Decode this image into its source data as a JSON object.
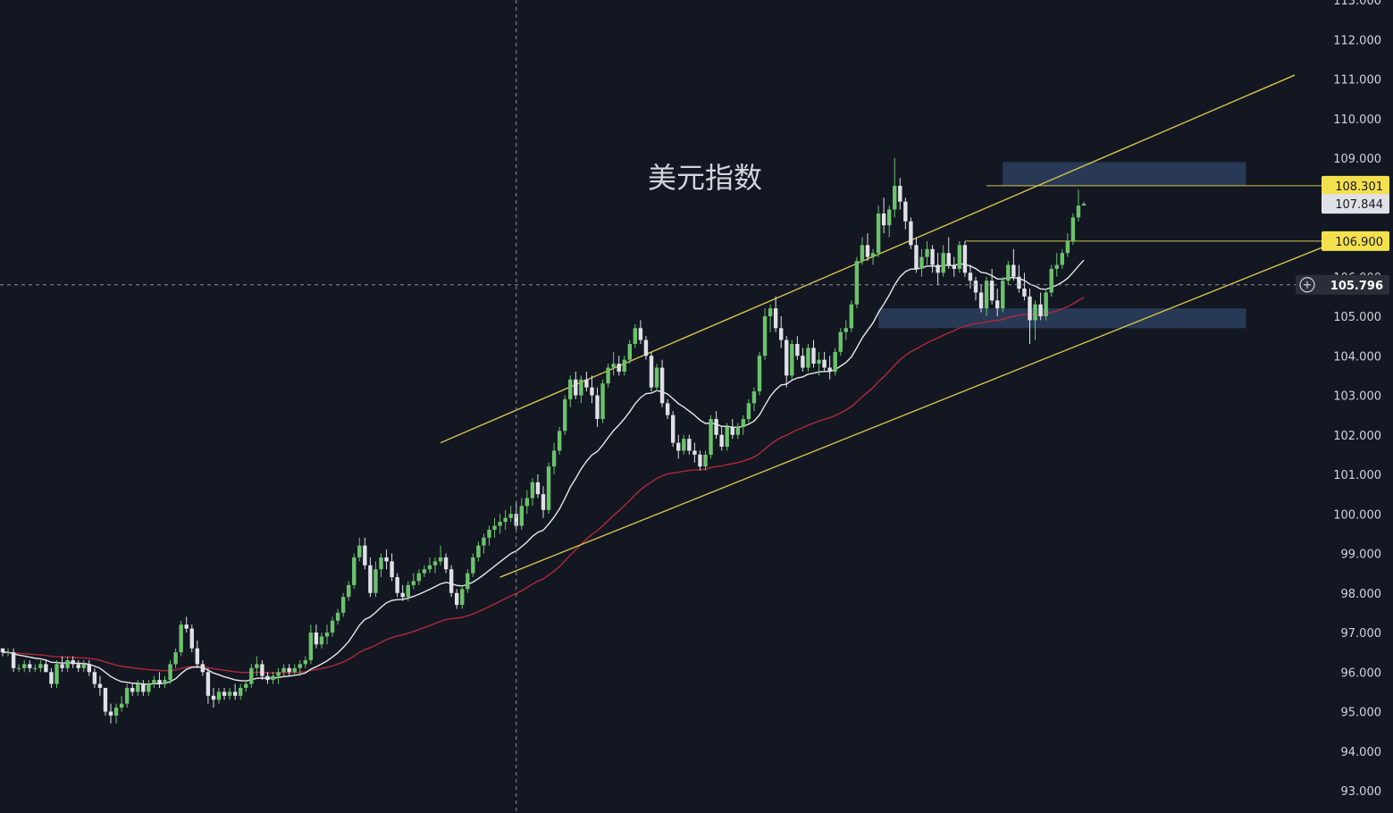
{
  "chart_data": {
    "type": "candlestick",
    "title": "美元指数",
    "y_range": [
      92.6,
      113.0
    ],
    "y_ticks": [
      "113.000",
      "112.000",
      "111.000",
      "110.000",
      "109.000",
      "108.000",
      "107.000",
      "106.000",
      "105.000",
      "104.000",
      "103.000",
      "102.000",
      "101.000",
      "100.000",
      "99.000",
      "98.000",
      "97.000",
      "96.000",
      "95.000",
      "94.000",
      "93.000"
    ],
    "price_labels": [
      {
        "value": 108.301,
        "text": "108.301",
        "style": "yellow"
      },
      {
        "value": 107.844,
        "text": "107.844",
        "style": "white"
      },
      {
        "value": 106.9,
        "text": "106.900",
        "style": "yellow"
      },
      {
        "value": 105.796,
        "text": "105.796",
        "style": "crosshair"
      }
    ],
    "horizontal_levels": [
      {
        "value": 108.301,
        "x_start_bar": 182,
        "color": "#d4c24a"
      },
      {
        "value": 106.9,
        "x_start_bar": 178,
        "color": "#d4c24a"
      }
    ],
    "zones": [
      {
        "top": 108.9,
        "bottom": 108.3,
        "start_bar": 185,
        "end_bar": 230
      },
      {
        "top": 105.2,
        "bottom": 104.7,
        "start_bar": 162,
        "end_bar": 230
      }
    ],
    "channel_lines": [
      {
        "from": [
          81,
          101.8
        ],
        "to": [
          239,
          111.1
        ]
      },
      {
        "from": [
          92,
          98.4
        ],
        "to": [
          247,
          106.9
        ]
      }
    ],
    "crosshair": {
      "bar": 95,
      "price": 105.796
    },
    "candles": [
      [
        96.6,
        96.6,
        96.4,
        96.5
      ],
      [
        96.5,
        96.6,
        96.4,
        96.5
      ],
      [
        96.5,
        96.6,
        96.0,
        96.1
      ],
      [
        96.1,
        96.2,
        96.0,
        96.1
      ],
      [
        96.1,
        96.3,
        96.0,
        96.2
      ],
      [
        96.2,
        96.3,
        96.0,
        96.1
      ],
      [
        96.1,
        96.2,
        96.0,
        96.1
      ],
      [
        96.1,
        96.3,
        96.0,
        96.2
      ],
      [
        96.2,
        96.3,
        96.0,
        96.0
      ],
      [
        96.0,
        96.1,
        95.6,
        95.7
      ],
      [
        95.7,
        96.3,
        95.6,
        96.2
      ],
      [
        96.2,
        96.4,
        96.0,
        96.1
      ],
      [
        96.1,
        96.4,
        96.0,
        96.3
      ],
      [
        96.3,
        96.4,
        96.1,
        96.2
      ],
      [
        96.2,
        96.3,
        96.0,
        96.1
      ],
      [
        96.1,
        96.3,
        96.0,
        96.2
      ],
      [
        96.2,
        96.3,
        95.9,
        96.0
      ],
      [
        96.0,
        96.1,
        95.6,
        95.7
      ],
      [
        95.7,
        95.9,
        95.4,
        95.6
      ],
      [
        95.6,
        95.6,
        94.9,
        95.0
      ],
      [
        95.0,
        95.2,
        94.7,
        94.9
      ],
      [
        94.9,
        95.2,
        94.7,
        95.1
      ],
      [
        95.1,
        95.4,
        95.0,
        95.2
      ],
      [
        95.2,
        95.7,
        95.1,
        95.6
      ],
      [
        95.6,
        95.7,
        95.4,
        95.5
      ],
      [
        95.5,
        95.8,
        95.4,
        95.7
      ],
      [
        95.7,
        95.8,
        95.4,
        95.5
      ],
      [
        95.5,
        95.8,
        95.4,
        95.7
      ],
      [
        95.7,
        95.9,
        95.6,
        95.8
      ],
      [
        95.8,
        96.0,
        95.6,
        95.7
      ],
      [
        95.7,
        95.9,
        95.6,
        95.8
      ],
      [
        95.8,
        96.3,
        95.7,
        96.2
      ],
      [
        96.2,
        96.6,
        96.1,
        96.5
      ],
      [
        96.5,
        97.3,
        96.4,
        97.2
      ],
      [
        97.2,
        97.4,
        97.0,
        97.1
      ],
      [
        97.1,
        97.2,
        96.5,
        96.6
      ],
      [
        96.6,
        96.8,
        96.1,
        96.2
      ],
      [
        96.2,
        96.3,
        95.9,
        96.0
      ],
      [
        96.0,
        96.1,
        95.2,
        95.4
      ],
      [
        95.4,
        95.6,
        95.1,
        95.3
      ],
      [
        95.3,
        95.6,
        95.2,
        95.5
      ],
      [
        95.5,
        95.6,
        95.3,
        95.4
      ],
      [
        95.4,
        95.6,
        95.3,
        95.5
      ],
      [
        95.5,
        95.7,
        95.3,
        95.4
      ],
      [
        95.4,
        95.7,
        95.3,
        95.6
      ],
      [
        95.6,
        95.8,
        95.5,
        95.7
      ],
      [
        95.7,
        96.2,
        95.6,
        96.1
      ],
      [
        96.1,
        96.4,
        95.9,
        96.2
      ],
      [
        96.2,
        96.3,
        95.8,
        95.9
      ],
      [
        95.9,
        96.0,
        95.7,
        95.8
      ],
      [
        95.8,
        96.0,
        95.7,
        95.9
      ],
      [
        95.9,
        96.1,
        95.7,
        96.0
      ],
      [
        96.0,
        96.2,
        95.9,
        96.1
      ],
      [
        96.1,
        96.2,
        95.9,
        96.0
      ],
      [
        96.0,
        96.2,
        95.9,
        96.1
      ],
      [
        96.1,
        96.3,
        95.9,
        96.2
      ],
      [
        96.2,
        96.4,
        96.1,
        96.3
      ],
      [
        96.3,
        97.2,
        96.2,
        97.0
      ],
      [
        97.0,
        97.2,
        96.6,
        96.7
      ],
      [
        96.7,
        97.0,
        96.6,
        96.9
      ],
      [
        96.9,
        97.2,
        96.7,
        97.0
      ],
      [
        97.0,
        97.4,
        96.9,
        97.3
      ],
      [
        97.3,
        97.6,
        97.2,
        97.5
      ],
      [
        97.5,
        98.0,
        97.4,
        97.9
      ],
      [
        97.9,
        98.3,
        97.8,
        98.2
      ],
      [
        98.2,
        99.0,
        98.1,
        98.9
      ],
      [
        98.9,
        99.4,
        98.8,
        99.2
      ],
      [
        99.2,
        99.4,
        98.6,
        98.7
      ],
      [
        98.7,
        98.9,
        97.9,
        98.0
      ],
      [
        98.0,
        98.8,
        97.9,
        98.6
      ],
      [
        98.6,
        99.0,
        98.4,
        98.9
      ],
      [
        98.9,
        99.1,
        98.6,
        98.8
      ],
      [
        98.8,
        99.0,
        98.3,
        98.4
      ],
      [
        98.4,
        98.5,
        97.9,
        98.0
      ],
      [
        98.0,
        98.2,
        97.8,
        97.9
      ],
      [
        97.9,
        98.3,
        97.8,
        98.2
      ],
      [
        98.2,
        98.5,
        98.1,
        98.3
      ],
      [
        98.3,
        98.6,
        98.2,
        98.5
      ],
      [
        98.5,
        98.7,
        98.4,
        98.6
      ],
      [
        98.6,
        98.9,
        98.5,
        98.7
      ],
      [
        98.7,
        98.9,
        98.5,
        98.8
      ],
      [
        98.8,
        99.2,
        98.7,
        98.9
      ],
      [
        98.9,
        99.0,
        98.5,
        98.6
      ],
      [
        98.6,
        98.7,
        97.9,
        98.0
      ],
      [
        98.0,
        98.1,
        97.6,
        97.7
      ],
      [
        97.7,
        98.2,
        97.6,
        98.1
      ],
      [
        98.1,
        98.6,
        98.0,
        98.5
      ],
      [
        98.5,
        99.0,
        98.4,
        98.9
      ],
      [
        98.9,
        99.3,
        98.8,
        99.2
      ],
      [
        99.2,
        99.5,
        99.0,
        99.4
      ],
      [
        99.4,
        99.7,
        99.2,
        99.6
      ],
      [
        99.6,
        99.9,
        99.4,
        99.7
      ],
      [
        99.7,
        100.0,
        99.5,
        99.8
      ],
      [
        99.8,
        100.1,
        99.6,
        99.9
      ],
      [
        99.9,
        100.2,
        99.8,
        100.0
      ],
      [
        100.0,
        100.3,
        99.6,
        99.7
      ],
      [
        99.7,
        100.4,
        99.6,
        100.2
      ],
      [
        100.2,
        100.6,
        100.0,
        100.4
      ],
      [
        100.4,
        100.9,
        100.2,
        100.8
      ],
      [
        100.8,
        101.0,
        100.4,
        100.5
      ],
      [
        100.5,
        100.7,
        99.9,
        100.1
      ],
      [
        100.1,
        101.3,
        100.0,
        101.2
      ],
      [
        101.2,
        101.8,
        101.0,
        101.6
      ],
      [
        101.6,
        102.2,
        101.5,
        102.1
      ],
      [
        102.1,
        103.0,
        102.0,
        102.9
      ],
      [
        102.9,
        103.5,
        102.7,
        103.4
      ],
      [
        103.4,
        103.6,
        102.9,
        103.0
      ],
      [
        103.0,
        103.5,
        102.8,
        103.4
      ],
      [
        103.4,
        103.6,
        103.1,
        103.2
      ],
      [
        103.2,
        103.5,
        102.8,
        103.0
      ],
      [
        103.0,
        103.2,
        102.2,
        102.4
      ],
      [
        102.4,
        103.4,
        102.3,
        103.3
      ],
      [
        103.3,
        103.8,
        103.2,
        103.7
      ],
      [
        103.7,
        104.1,
        103.5,
        103.8
      ],
      [
        103.8,
        104.0,
        103.5,
        103.6
      ],
      [
        103.6,
        104.0,
        103.5,
        103.9
      ],
      [
        103.9,
        104.4,
        103.8,
        104.3
      ],
      [
        104.3,
        104.8,
        104.2,
        104.7
      ],
      [
        104.7,
        104.9,
        104.3,
        104.4
      ],
      [
        104.4,
        104.5,
        103.9,
        104.0
      ],
      [
        104.0,
        104.1,
        103.1,
        103.2
      ],
      [
        103.2,
        103.8,
        103.1,
        103.7
      ],
      [
        103.7,
        103.9,
        102.7,
        102.8
      ],
      [
        102.8,
        102.9,
        102.4,
        102.5
      ],
      [
        102.5,
        102.6,
        101.7,
        101.8
      ],
      [
        101.8,
        102.0,
        101.4,
        101.6
      ],
      [
        101.6,
        102.0,
        101.5,
        101.9
      ],
      [
        101.9,
        102.0,
        101.5,
        101.6
      ],
      [
        101.6,
        101.8,
        101.3,
        101.5
      ],
      [
        101.5,
        101.6,
        101.1,
        101.2
      ],
      [
        101.2,
        101.6,
        101.1,
        101.5
      ],
      [
        101.5,
        102.5,
        101.4,
        102.4
      ],
      [
        102.4,
        102.6,
        101.9,
        102.0
      ],
      [
        102.0,
        102.2,
        101.6,
        101.7
      ],
      [
        101.7,
        102.3,
        101.6,
        102.2
      ],
      [
        102.2,
        102.4,
        101.9,
        102.0
      ],
      [
        102.0,
        102.3,
        101.9,
        102.2
      ],
      [
        102.2,
        102.5,
        102.0,
        102.4
      ],
      [
        102.4,
        102.9,
        102.3,
        102.8
      ],
      [
        102.8,
        103.2,
        102.6,
        103.1
      ],
      [
        103.1,
        104.1,
        103.0,
        104.0
      ],
      [
        104.0,
        105.2,
        103.9,
        105.0
      ],
      [
        105.0,
        105.3,
        104.6,
        105.2
      ],
      [
        105.2,
        105.5,
        104.6,
        104.7
      ],
      [
        104.7,
        105.0,
        104.2,
        104.4
      ],
      [
        104.4,
        104.5,
        103.2,
        103.5
      ],
      [
        103.5,
        104.4,
        103.4,
        104.3
      ],
      [
        104.3,
        104.5,
        103.9,
        104.0
      ],
      [
        104.0,
        104.2,
        103.6,
        103.7
      ],
      [
        103.7,
        104.3,
        103.6,
        104.2
      ],
      [
        104.2,
        104.4,
        103.7,
        103.8
      ],
      [
        103.8,
        104.1,
        103.5,
        103.9
      ],
      [
        103.9,
        104.1,
        103.6,
        103.7
      ],
      [
        103.7,
        104.0,
        103.4,
        103.6
      ],
      [
        103.6,
        104.2,
        103.5,
        104.1
      ],
      [
        104.1,
        104.7,
        104.0,
        104.6
      ],
      [
        104.6,
        104.9,
        104.4,
        104.7
      ],
      [
        104.7,
        105.4,
        104.6,
        105.3
      ],
      [
        105.3,
        106.5,
        105.2,
        106.4
      ],
      [
        106.4,
        107.0,
        106.3,
        106.8
      ],
      [
        106.8,
        107.1,
        106.4,
        106.5
      ],
      [
        106.5,
        106.7,
        106.3,
        106.6
      ],
      [
        106.6,
        107.8,
        106.5,
        107.6
      ],
      [
        107.6,
        108.0,
        107.1,
        107.3
      ],
      [
        107.3,
        107.8,
        107.0,
        107.7
      ],
      [
        107.7,
        109.0,
        107.5,
        108.3
      ],
      [
        108.3,
        108.5,
        107.7,
        107.9
      ],
      [
        107.9,
        108.0,
        107.2,
        107.4
      ],
      [
        107.4,
        107.5,
        106.7,
        106.8
      ],
      [
        106.8,
        107.0,
        106.1,
        106.2
      ],
      [
        106.2,
        106.7,
        106.0,
        106.5
      ],
      [
        106.5,
        106.9,
        106.3,
        106.7
      ],
      [
        106.7,
        106.8,
        106.1,
        106.3
      ],
      [
        106.3,
        106.6,
        105.8,
        106.1
      ],
      [
        106.1,
        106.8,
        106.0,
        106.6
      ],
      [
        106.6,
        107.0,
        106.2,
        106.3
      ],
      [
        106.3,
        106.5,
        106.0,
        106.2
      ],
      [
        106.2,
        106.9,
        106.1,
        106.8
      ],
      [
        106.8,
        106.9,
        106.0,
        106.1
      ],
      [
        106.1,
        106.3,
        105.7,
        105.9
      ],
      [
        105.9,
        106.0,
        105.4,
        105.6
      ],
      [
        105.6,
        105.8,
        105.1,
        105.2
      ],
      [
        105.2,
        106.0,
        105.0,
        105.9
      ],
      [
        105.9,
        106.2,
        105.3,
        105.4
      ],
      [
        105.4,
        105.7,
        105.0,
        105.2
      ],
      [
        105.2,
        106.0,
        105.1,
        105.9
      ],
      [
        105.9,
        106.4,
        105.8,
        106.3
      ],
      [
        106.3,
        106.7,
        105.9,
        106.0
      ],
      [
        106.0,
        106.3,
        105.6,
        105.7
      ],
      [
        105.7,
        106.1,
        105.4,
        105.5
      ],
      [
        105.5,
        105.7,
        104.3,
        104.9
      ],
      [
        104.9,
        105.4,
        104.4,
        105.3
      ],
      [
        105.3,
        105.6,
        104.9,
        105.0
      ],
      [
        105.0,
        105.7,
        104.9,
        105.6
      ],
      [
        105.6,
        106.3,
        105.5,
        106.2
      ],
      [
        106.2,
        106.6,
        106.0,
        106.3
      ],
      [
        106.3,
        106.7,
        106.2,
        106.6
      ],
      [
        106.6,
        107.1,
        106.5,
        106.9
      ],
      [
        106.9,
        107.6,
        106.8,
        107.5
      ],
      [
        107.5,
        108.2,
        107.4,
        107.8
      ],
      [
        107.8,
        107.9,
        107.8,
        107.844
      ]
    ]
  }
}
